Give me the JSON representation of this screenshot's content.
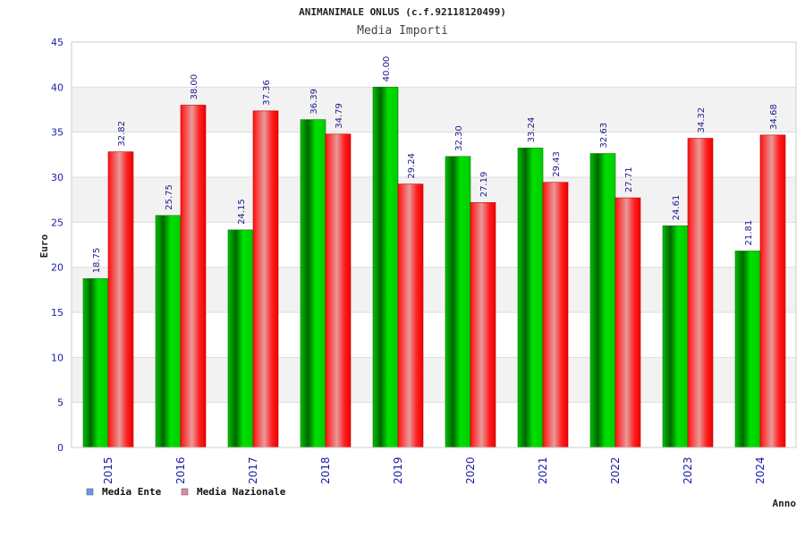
{
  "chart_data": {
    "type": "bar",
    "title": "ANIMANIMALE ONLUS (c.f.92118120499)",
    "subtitle": "Media Importi",
    "xlabel": "Anno",
    "ylabel": "Euro",
    "ylim": [
      0,
      45
    ],
    "yticks": [
      "0",
      "5",
      "10",
      "15",
      "20",
      "25",
      "30",
      "35",
      "40",
      "45"
    ],
    "grid": true,
    "legend_position": "bottom-left",
    "categories": [
      "2015",
      "2016",
      "2017",
      "2018",
      "2019",
      "2020",
      "2021",
      "2022",
      "2023",
      "2024"
    ],
    "series": [
      {
        "name": "Media Ente",
        "color": "#00cc00",
        "legend_color": "#6699ee",
        "values": [
          18.75,
          25.75,
          24.15,
          36.39,
          40.0,
          32.3,
          33.24,
          32.63,
          24.61,
          21.81
        ],
        "labels": [
          "18.75",
          "25.75",
          "24.15",
          "36.39",
          "40.00",
          "32.30",
          "33.24",
          "32.63",
          "24.61",
          "21.81"
        ]
      },
      {
        "name": "Media Nazionale",
        "color": "#ee0000",
        "legend_color": "#dd88aa",
        "values": [
          32.82,
          38.0,
          37.36,
          34.79,
          29.24,
          27.19,
          29.43,
          27.71,
          34.32,
          34.68
        ],
        "labels": [
          "32.82",
          "38.00",
          "37.36",
          "34.79",
          "29.24",
          "27.19",
          "29.43",
          "27.71",
          "34.32",
          "34.68"
        ]
      }
    ]
  }
}
